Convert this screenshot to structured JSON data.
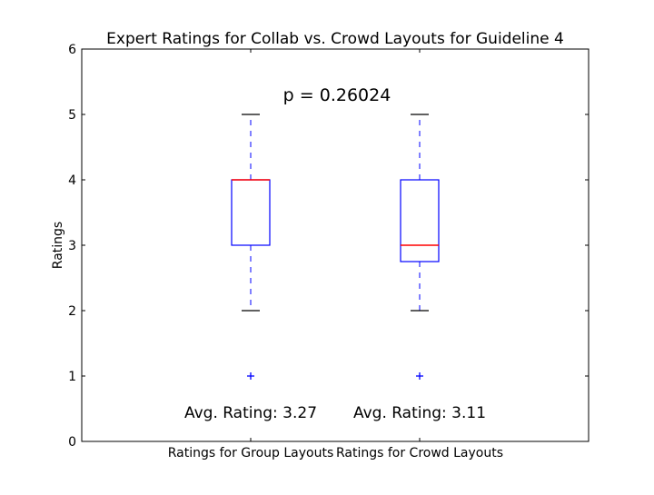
{
  "chart_data": {
    "type": "box",
    "title": "Expert Ratings for Collab vs. Crowd Layouts for Guideline 4",
    "xlabel": "",
    "ylabel": "Ratings",
    "ylim": [
      0,
      6
    ],
    "yticks": [
      "0",
      "1",
      "2",
      "3",
      "4",
      "5",
      "6"
    ],
    "grid": false,
    "annotation": "p = 0.26024",
    "categories": [
      "Ratings for Group Layouts",
      "Ratings for Crowd Layouts"
    ],
    "boxes": [
      {
        "category": "Ratings for Group Layouts",
        "whisker_low": 2,
        "q1": 3,
        "median": 4,
        "q3": 4,
        "whisker_high": 5,
        "outliers": [
          1
        ],
        "avg_label": "Avg. Rating: 3.27"
      },
      {
        "category": "Ratings for Crowd Layouts",
        "whisker_low": 2,
        "q1": 2.75,
        "median": 3,
        "q3": 4,
        "whisker_high": 5,
        "outliers": [
          1
        ],
        "avg_label": "Avg. Rating: 3.11"
      }
    ],
    "colors": {
      "box": "#0000ff",
      "median": "#ff0000",
      "whisker": "#0000ff",
      "cap": "#000000",
      "outlier": "#0000ff"
    }
  }
}
